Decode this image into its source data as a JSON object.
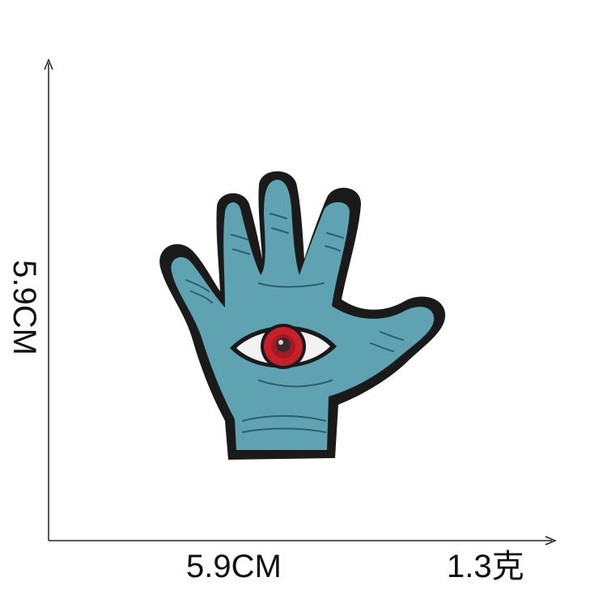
{
  "image": {
    "subject": "Embroidered hand patch with an eye in the palm",
    "colors": {
      "background": "#ffffff",
      "patch_border": "#1a1a1a",
      "hand_fill": "#5fa3b3",
      "hand_stitch": "#2b5f6b",
      "eye_white": "#f2f2f2",
      "iris": "#c8202a",
      "pupil": "#3a2a2a",
      "axis": "#222222"
    }
  },
  "labels": {
    "width": "5.9CM",
    "height": "5.9CM",
    "weight": "1.3克"
  }
}
